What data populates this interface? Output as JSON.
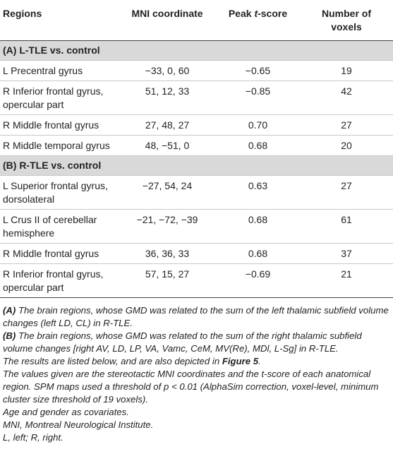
{
  "table": {
    "headers": {
      "regions": "Regions",
      "mni": "MNI coordinate",
      "peak_prefix": "Peak ",
      "peak_italic": "t",
      "peak_suffix": "-score",
      "voxels_line1": "Number of",
      "voxels_line2": "voxels"
    },
    "sections": [
      {
        "title": "(A) L-TLE vs. control",
        "rows": [
          {
            "region": "L Precentral gyrus",
            "mni": "−33, 0, 60",
            "t": "−0.65",
            "n": "19"
          },
          {
            "region": "R Inferior frontal gyrus, opercular part",
            "mni": "51, 12, 33",
            "t": "−0.85",
            "n": "42"
          },
          {
            "region": "R Middle frontal gyrus",
            "mni": "27, 48, 27",
            "t": "0.70",
            "n": "27"
          },
          {
            "region": "R Middle temporal gyrus",
            "mni": "48, −51, 0",
            "t": "0.68",
            "n": "20"
          }
        ]
      },
      {
        "title": "(B) R-TLE vs. control",
        "rows": [
          {
            "region": "L Superior frontal gyrus, dorsolateral",
            "mni": "−27, 54, 24",
            "t": "0.63",
            "n": "27"
          },
          {
            "region": "L Crus II of cerebellar hemisphere",
            "mni": "−21, −72, −39",
            "t": "0.68",
            "n": "61"
          },
          {
            "region": "R Middle frontal gyrus",
            "mni": "36, 36, 33",
            "t": "0.68",
            "n": "37"
          },
          {
            "region": "R Inferior frontal gyrus, opercular part",
            "mni": "57, 15, 27",
            "t": "−0.69",
            "n": "21"
          }
        ]
      }
    ]
  },
  "notes": {
    "a_label": "(A)",
    "a_text": " The brain regions, whose GMD was related to the sum of the left thalamic subfield volume changes (left LD, CL) in R-TLE.",
    "b_label": "(B)",
    "b_text": " The brain regions, whose GMD was related to the sum of the right thalamic subfield volume changes [right AV, LD, LP, VA, Vamc, CeM, MV(Re), MDl, L-Sg] in R-TLE.",
    "listed_prefix": "The results are listed below, and are also depicted in ",
    "listed_figure": "Figure 5",
    "listed_suffix": ".",
    "values": "The values given are the stereotactic MNI coordinates and the t-score of each anatomical region. SPM maps used a threshold of p < 0.01 (AlphaSim correction, voxel-level, minimum cluster size threshold of 19 voxels).",
    "covariates": "Age and gender as covariates.",
    "mni": "MNI, Montreal Neurological Institute.",
    "lr": "L, left; R, right."
  }
}
